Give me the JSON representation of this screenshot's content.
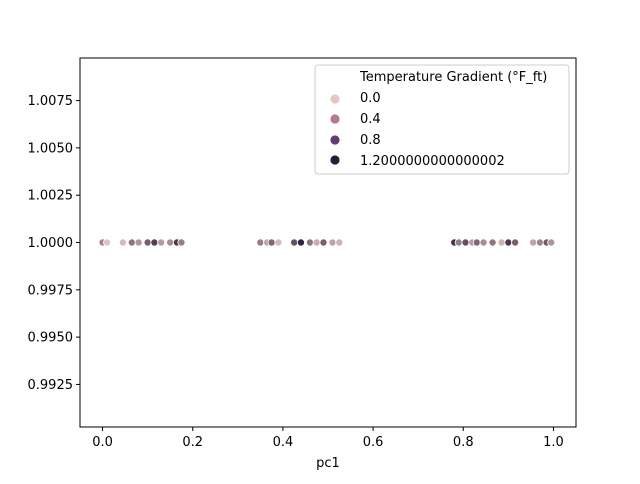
{
  "chart_data": {
    "type": "scatter",
    "xlabel": "pc1",
    "ylabel": "",
    "title": "",
    "xlim": [
      -0.05,
      1.05
    ],
    "ylim": [
      0.99025,
      1.00975
    ],
    "x_ticks": [
      0.0,
      0.2,
      0.4,
      0.6,
      0.8,
      1.0
    ],
    "x_tick_labels": [
      "0.0",
      "0.2",
      "0.4",
      "0.6",
      "0.8",
      "1.0"
    ],
    "y_ticks": [
      0.9925,
      0.995,
      0.9975,
      1.0,
      1.0025,
      1.005,
      1.0075
    ],
    "y_tick_labels": [
      "0.9925",
      "0.9950",
      "0.9975",
      "1.0000",
      "1.0025",
      "1.0050",
      "1.0075"
    ],
    "legend": {
      "title": "Temperature Gradient (°F_ft)",
      "placement": "top-right",
      "entries": [
        {
          "label": "0.0",
          "color": "#e6c6c2"
        },
        {
          "label": "0.4",
          "color": "#b57995"
        },
        {
          "label": "0.8",
          "color": "#613c6f"
        },
        {
          "label": "1.2000000000000002",
          "color": "#2a1a3a"
        }
      ]
    },
    "hue_scale": {
      "min": 0.0,
      "max": 1.2,
      "color_min": "#efd2cc",
      "color_max": "#2a1a3a"
    },
    "points": [
      {
        "x": 0.0,
        "y": 1.0,
        "hue": 0.5
      },
      {
        "x": 0.01,
        "y": 1.0,
        "hue": 0.1
      },
      {
        "x": 0.045,
        "y": 1.0,
        "hue": 0.15
      },
      {
        "x": 0.065,
        "y": 1.0,
        "hue": 0.6
      },
      {
        "x": 0.08,
        "y": 1.0,
        "hue": 0.4
      },
      {
        "x": 0.1,
        "y": 1.0,
        "hue": 0.75
      },
      {
        "x": 0.115,
        "y": 1.0,
        "hue": 0.95
      },
      {
        "x": 0.13,
        "y": 1.0,
        "hue": 0.35
      },
      {
        "x": 0.15,
        "y": 1.0,
        "hue": 0.45
      },
      {
        "x": 0.165,
        "y": 1.0,
        "hue": 1.0
      },
      {
        "x": 0.175,
        "y": 1.0,
        "hue": 0.55
      },
      {
        "x": 0.35,
        "y": 1.0,
        "hue": 0.55
      },
      {
        "x": 0.365,
        "y": 1.0,
        "hue": 0.3
      },
      {
        "x": 0.375,
        "y": 1.0,
        "hue": 0.7
      },
      {
        "x": 0.39,
        "y": 1.0,
        "hue": 0.15
      },
      {
        "x": 0.425,
        "y": 1.0,
        "hue": 0.85
      },
      {
        "x": 0.44,
        "y": 1.0,
        "hue": 1.15
      },
      {
        "x": 0.46,
        "y": 1.0,
        "hue": 0.6
      },
      {
        "x": 0.475,
        "y": 1.0,
        "hue": 0.25
      },
      {
        "x": 0.49,
        "y": 1.0,
        "hue": 0.75
      },
      {
        "x": 0.51,
        "y": 1.0,
        "hue": 0.3
      },
      {
        "x": 0.525,
        "y": 1.0,
        "hue": 0.2
      },
      {
        "x": 0.78,
        "y": 1.0,
        "hue": 1.05
      },
      {
        "x": 0.79,
        "y": 1.0,
        "hue": 0.55
      },
      {
        "x": 0.805,
        "y": 1.0,
        "hue": 0.85
      },
      {
        "x": 0.82,
        "y": 1.0,
        "hue": 0.35
      },
      {
        "x": 0.83,
        "y": 1.0,
        "hue": 0.7
      },
      {
        "x": 0.845,
        "y": 1.0,
        "hue": 0.45
      },
      {
        "x": 0.865,
        "y": 1.0,
        "hue": 0.6
      },
      {
        "x": 0.885,
        "y": 1.0,
        "hue": 0.2
      },
      {
        "x": 0.9,
        "y": 1.0,
        "hue": 1.0
      },
      {
        "x": 0.915,
        "y": 1.0,
        "hue": 0.75
      },
      {
        "x": 0.955,
        "y": 1.0,
        "hue": 0.3
      },
      {
        "x": 0.97,
        "y": 1.0,
        "hue": 0.5
      },
      {
        "x": 0.985,
        "y": 1.0,
        "hue": 0.8
      },
      {
        "x": 0.995,
        "y": 1.0,
        "hue": 0.4
      }
    ]
  }
}
